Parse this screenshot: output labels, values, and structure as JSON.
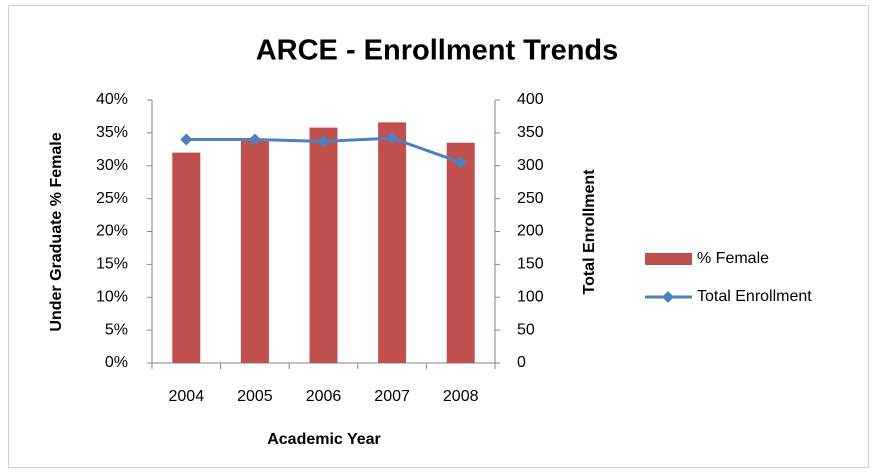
{
  "chart_data": {
    "type": "combo",
    "title": "ARCE - Enrollment Trends",
    "x_label": "Academic Year",
    "y_label": "Under Graduate % Female",
    "y2_label": "Total Enrollment",
    "categories": [
      "2004",
      "2005",
      "2006",
      "2007",
      "2008"
    ],
    "series": [
      {
        "name": "% Female",
        "type": "bar",
        "color": "#c0504d",
        "values": [
          32,
          34,
          35.8,
          36.6,
          33.5
        ]
      },
      {
        "name": "Total Enrollment",
        "type": "line",
        "axis": "y2",
        "color": "#4f81bd",
        "values": [
          340,
          340,
          337,
          342,
          305
        ]
      }
    ],
    "ylim": [
      0,
      40
    ],
    "yticks": [
      {
        "value": 0,
        "label": "0%"
      },
      {
        "value": 5,
        "label": "5%"
      },
      {
        "value": 10,
        "label": "10%"
      },
      {
        "value": 15,
        "label": "15%"
      },
      {
        "value": 20,
        "label": "20%"
      },
      {
        "value": 25,
        "label": "25%"
      },
      {
        "value": 30,
        "label": "30%"
      },
      {
        "value": 35,
        "label": "35%"
      },
      {
        "value": 40,
        "label": "40%"
      }
    ],
    "y2lim": [
      0,
      400
    ],
    "y2ticks": [
      0,
      50,
      100,
      150,
      200,
      250,
      300,
      350,
      400
    ],
    "grid": false,
    "legend": "right"
  }
}
